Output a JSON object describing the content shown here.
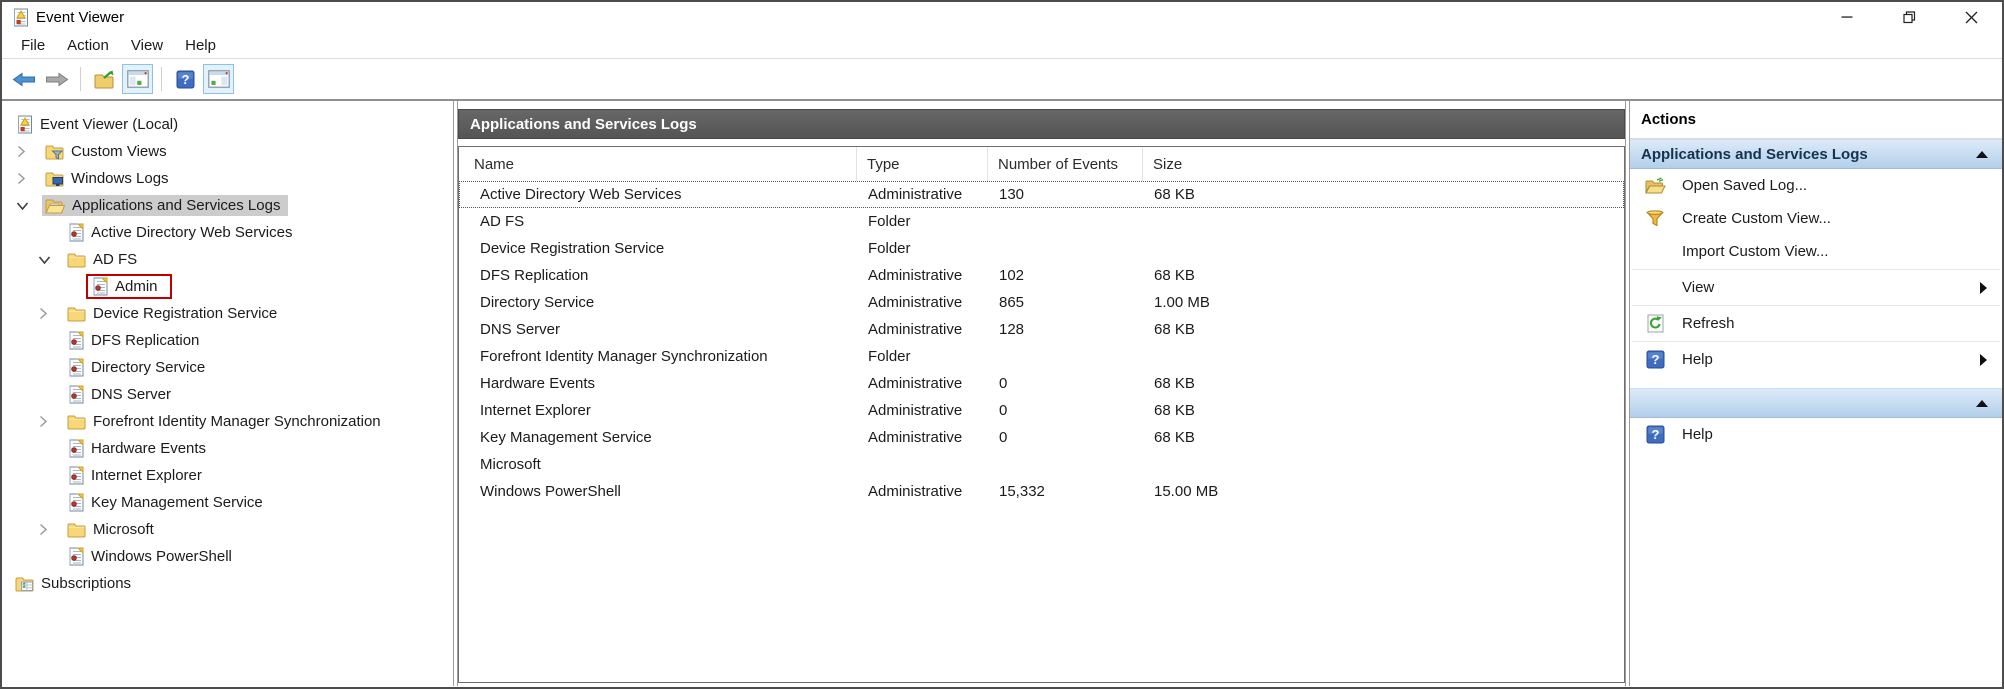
{
  "window": {
    "title": "Event Viewer",
    "controls": [
      {
        "name": "minimize",
        "icon": "minimize-icon"
      },
      {
        "name": "restore",
        "icon": "restore-icon"
      },
      {
        "name": "close",
        "icon": "close-icon"
      }
    ]
  },
  "menu": {
    "items": [
      "File",
      "Action",
      "View",
      "Help"
    ]
  },
  "toolbar": {
    "buttons": [
      {
        "name": "back",
        "icon": "back-arrow-icon"
      },
      {
        "name": "forward",
        "icon": "forward-arrow-icon"
      },
      {
        "separator": true
      },
      {
        "name": "open-saved-log",
        "icon": "export-folder-icon"
      },
      {
        "name": "show-hide-console-tree",
        "icon": "console-tree-icon",
        "highlighted": true
      },
      {
        "separator": true
      },
      {
        "name": "help",
        "icon": "help-icon"
      },
      {
        "name": "show-hide-action-pane",
        "icon": "action-pane-icon",
        "highlighted": true
      }
    ]
  },
  "tree": {
    "items": [
      {
        "label": "Event Viewer (Local)",
        "level": 0,
        "icon": "event-viewer-icon",
        "expander": null
      },
      {
        "label": "Custom Views",
        "level": 1,
        "icon": "folder-filter-icon",
        "expander": "collapsed"
      },
      {
        "label": "Windows Logs",
        "level": 1,
        "icon": "folder-computer-icon",
        "expander": "collapsed"
      },
      {
        "label": "Applications and Services Logs",
        "level": 1,
        "icon": "folder-open-icon",
        "expander": "expanded",
        "selected": true
      },
      {
        "label": "Active Directory Web Services",
        "level": 2,
        "icon": "log-icon",
        "expander": null
      },
      {
        "label": "AD FS",
        "level": 2,
        "icon": "folder-icon",
        "expander": "expanded"
      },
      {
        "label": "Admin",
        "level": 3,
        "icon": "log-icon",
        "expander": null,
        "highlight_box": true
      },
      {
        "label": "Device Registration Service",
        "level": 2,
        "icon": "folder-icon",
        "expander": "collapsed"
      },
      {
        "label": "DFS Replication",
        "level": 2,
        "icon": "log-icon",
        "expander": null
      },
      {
        "label": "Directory Service",
        "level": 2,
        "icon": "log-icon",
        "expander": null
      },
      {
        "label": "DNS Server",
        "level": 2,
        "icon": "log-icon",
        "expander": null
      },
      {
        "label": "Forefront Identity Manager Synchronization",
        "level": 2,
        "icon": "folder-icon",
        "expander": "collapsed"
      },
      {
        "label": "Hardware Events",
        "level": 2,
        "icon": "log-icon",
        "expander": null
      },
      {
        "label": "Internet Explorer",
        "level": 2,
        "icon": "log-icon",
        "expander": null
      },
      {
        "label": "Key Management Service",
        "level": 2,
        "icon": "log-icon",
        "expander": null
      },
      {
        "label": "Microsoft",
        "level": 2,
        "icon": "folder-icon",
        "expander": "collapsed"
      },
      {
        "label": "Windows PowerShell",
        "level": 2,
        "icon": "log-icon",
        "expander": null
      },
      {
        "label": "Subscriptions",
        "level": 0,
        "icon": "folder-table-icon",
        "expander": null
      }
    ]
  },
  "main": {
    "header": "Applications and Services Logs",
    "columns": [
      "Name",
      "Type",
      "Number of Events",
      "Size"
    ],
    "rows": [
      {
        "name": "Active Directory Web Services",
        "type": "Administrative",
        "events": "130",
        "size": "68 KB",
        "focused": true
      },
      {
        "name": "AD FS",
        "type": "Folder",
        "events": "",
        "size": ""
      },
      {
        "name": "Device Registration Service",
        "type": "Folder",
        "events": "",
        "size": ""
      },
      {
        "name": "DFS Replication",
        "type": "Administrative",
        "events": "102",
        "size": "68 KB"
      },
      {
        "name": "Directory Service",
        "type": "Administrative",
        "events": "865",
        "size": "1.00 MB"
      },
      {
        "name": "DNS Server",
        "type": "Administrative",
        "events": "128",
        "size": "68 KB"
      },
      {
        "name": "Forefront Identity Manager Synchronization",
        "type": "Folder",
        "events": "",
        "size": ""
      },
      {
        "name": "Hardware Events",
        "type": "Administrative",
        "events": "0",
        "size": "68 KB"
      },
      {
        "name": "Internet Explorer",
        "type": "Administrative",
        "events": "0",
        "size": "68 KB"
      },
      {
        "name": "Key Management Service",
        "type": "Administrative",
        "events": "0",
        "size": "68 KB"
      },
      {
        "name": "Microsoft",
        "type": "",
        "events": "",
        "size": ""
      },
      {
        "name": "Windows PowerShell",
        "type": "Administrative",
        "events": "15,332",
        "size": "15.00 MB"
      }
    ]
  },
  "actions": {
    "title": "Actions",
    "sections": [
      {
        "header": "Applications and Services Logs",
        "collapse_icon": "chevron-up-icon",
        "items": [
          {
            "label": "Open Saved Log...",
            "icon": "open-folder-icon"
          },
          {
            "label": "Create Custom View...",
            "icon": "funnel-icon"
          },
          {
            "label": "Import Custom View...",
            "icon": null
          },
          {
            "label": "View",
            "icon": null,
            "submenu": true,
            "divider_before": true
          },
          {
            "label": "Refresh",
            "icon": "refresh-icon",
            "divider_before": true
          },
          {
            "label": "Help",
            "icon": "help-icon",
            "submenu": true,
            "divider_before": true
          }
        ]
      },
      {
        "header": "",
        "collapse_icon": "chevron-up-icon",
        "items": [
          {
            "label": "Help",
            "icon": "help-icon"
          }
        ]
      }
    ]
  },
  "colors": {
    "selection_gray": "#cccccc",
    "panel_header_dark": "#595959",
    "section_blue_top": "#dcebf8",
    "section_blue_bottom": "#b3cfeb",
    "highlight_red": "#c00000",
    "toolbar_highlight": "#e3f1fb"
  }
}
